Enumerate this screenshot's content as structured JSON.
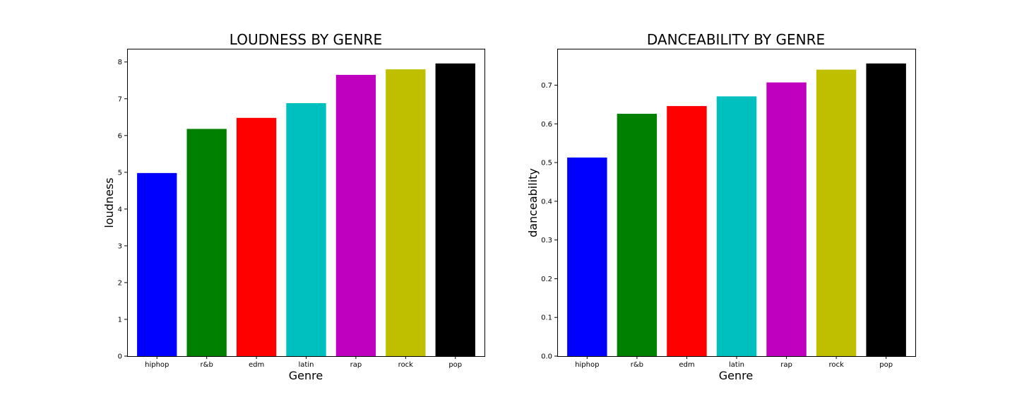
{
  "chart_data": [
    {
      "type": "bar",
      "title": "LOUDNESS BY GENRE",
      "xlabel": "Genre",
      "ylabel": "loudness",
      "categories": [
        "hiphop",
        "r&b",
        "edm",
        "latin",
        "rap",
        "rock",
        "pop"
      ],
      "values": [
        4.98,
        6.18,
        6.48,
        6.88,
        7.65,
        7.8,
        7.96
      ],
      "colors": [
        "#0000ff",
        "#008000",
        "#ff0000",
        "#00bfbf",
        "#bf00bf",
        "#bfbf00",
        "#000000"
      ],
      "ylim": [
        0,
        8.36
      ],
      "yticks": [
        0,
        1,
        2,
        3,
        4,
        5,
        6,
        7,
        8
      ],
      "ytick_labels": [
        "0",
        "1",
        "2",
        "3",
        "4",
        "5",
        "6",
        "7",
        "8"
      ],
      "grid": false,
      "legend": "none"
    },
    {
      "type": "bar",
      "title": "DANCEABILITY BY GENRE",
      "xlabel": "Genre",
      "ylabel": "danceability",
      "categories": [
        "hiphop",
        "r&b",
        "edm",
        "latin",
        "rap",
        "rock",
        "pop"
      ],
      "values": [
        0.513,
        0.626,
        0.646,
        0.671,
        0.707,
        0.74,
        0.756
      ],
      "colors": [
        "#0000ff",
        "#008000",
        "#ff0000",
        "#00bfbf",
        "#bf00bf",
        "#bfbf00",
        "#000000"
      ],
      "ylim": [
        0,
        0.794
      ],
      "yticks": [
        0,
        0.1,
        0.2,
        0.3,
        0.4,
        0.5,
        0.6,
        0.7
      ],
      "ytick_labels": [
        "0.0",
        "0.1",
        "0.2",
        "0.3",
        "0.4",
        "0.5",
        "0.6",
        "0.7"
      ],
      "grid": false,
      "legend": "none"
    }
  ]
}
